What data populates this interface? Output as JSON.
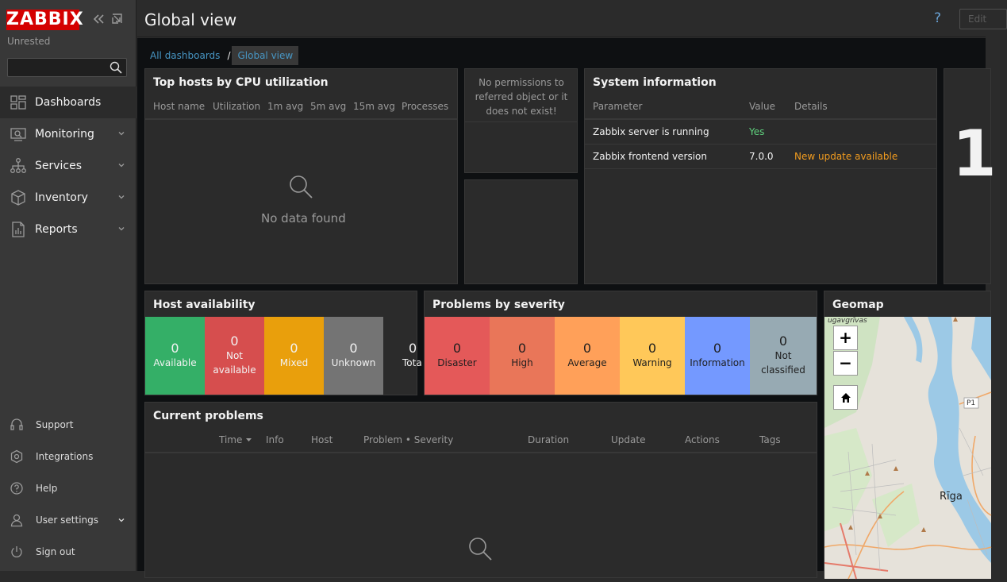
{
  "sidebar": {
    "logo": "ZABBIX",
    "subtitle": "Unrested",
    "search": {
      "value": "",
      "placeholder": ""
    },
    "items": [
      {
        "label": "Dashboards",
        "icon": "dashboards-icon"
      },
      {
        "label": "Monitoring",
        "icon": "monitoring-icon"
      },
      {
        "label": "Services",
        "icon": "services-icon"
      },
      {
        "label": "Inventory",
        "icon": "inventory-icon"
      },
      {
        "label": "Reports",
        "icon": "reports-icon"
      }
    ],
    "bottom_items": [
      {
        "label": "Support",
        "icon": "headset-icon"
      },
      {
        "label": "Integrations",
        "icon": "integrations-icon"
      },
      {
        "label": "Help",
        "icon": "help-icon"
      },
      {
        "label": "User settings",
        "icon": "user-icon"
      },
      {
        "label": "Sign out",
        "icon": "power-icon"
      }
    ]
  },
  "header": {
    "title": "Global view",
    "help": "?",
    "edit_label": "Edit"
  },
  "breadcrumb": {
    "link": "All dashboards",
    "separator": "/",
    "current": "Global view"
  },
  "top_hosts": {
    "title": "Top hosts by CPU utilization",
    "columns": [
      "Host name",
      "Utilization",
      "1m avg",
      "5m avg",
      "15m avg",
      "Processes"
    ],
    "empty": "No data found"
  },
  "no_permissions": "No permissions to referred object or it does not exist!",
  "system_info": {
    "title": "System information",
    "columns": [
      "Parameter",
      "Value",
      "Details"
    ],
    "rows": [
      {
        "parameter": "Zabbix server is running",
        "value": "Yes",
        "details": ""
      },
      {
        "parameter": "Zabbix frontend version",
        "value": "7.0.0",
        "details": "New update available"
      }
    ]
  },
  "clock_fragment": "1",
  "host_availability": {
    "title": "Host availability",
    "tiles": [
      {
        "count": "0",
        "label": "Available",
        "color": "#34af67"
      },
      {
        "count": "0",
        "label": "Not available",
        "color": "#d64e4e"
      },
      {
        "count": "0",
        "label": "Mixed",
        "color": "#e99f0c"
      },
      {
        "count": "0",
        "label": "Unknown",
        "color": "#747474"
      },
      {
        "count": "0",
        "label": "Tota",
        "color": "#2b2b2b"
      }
    ]
  },
  "problems_by_severity": {
    "title": "Problems by severity",
    "tiles": [
      {
        "count": "0",
        "label": "Disaster",
        "color": "#e45959",
        "text": "#1f1f1f"
      },
      {
        "count": "0",
        "label": "High",
        "color": "#e97659",
        "text": "#1f1f1f"
      },
      {
        "count": "0",
        "label": "Average",
        "color": "#ffa059",
        "text": "#1f1f1f"
      },
      {
        "count": "0",
        "label": "Warning",
        "color": "#ffc859",
        "text": "#1f1f1f"
      },
      {
        "count": "0",
        "label": "Information",
        "color": "#7499ff",
        "text": "#1f1f1f"
      },
      {
        "count": "0",
        "label": "Not classified",
        "color": "#97aab3",
        "text": "#1f1f1f"
      }
    ]
  },
  "geomap": {
    "title": "Geomap",
    "zoom_in": "+",
    "zoom_out": "−",
    "labels": {
      "city": "Rīga",
      "road": "P1",
      "area": "ugavgrīvas"
    }
  },
  "current_problems": {
    "title": "Current problems",
    "columns": [
      "Time",
      "Info",
      "Host",
      "Problem • Severity",
      "Duration",
      "Update",
      "Actions",
      "Tags"
    ]
  },
  "colors": {
    "ok_green": "#5fd07d",
    "update_orange": "#f29c1f",
    "link_blue": "#4796c4"
  }
}
